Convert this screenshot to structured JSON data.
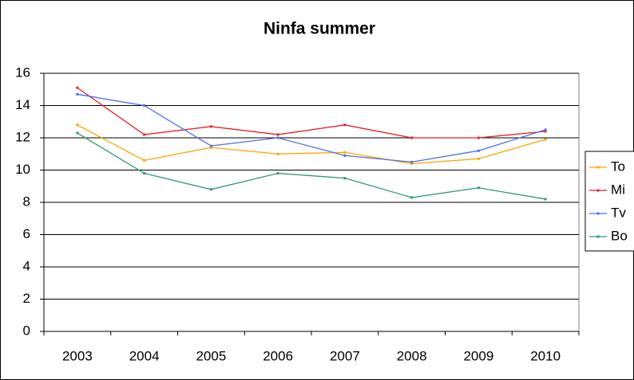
{
  "chart_data": {
    "type": "line",
    "title": "Ninfa summer",
    "categories": [
      "2003",
      "2004",
      "2005",
      "2006",
      "2007",
      "2008",
      "2009",
      "2010"
    ],
    "series": [
      {
        "name": "To",
        "color": "#ffa500",
        "values": [
          12.8,
          10.6,
          11.4,
          11.0,
          11.1,
          10.4,
          10.7,
          11.9
        ]
      },
      {
        "name": "Mi",
        "color": "#e8202a",
        "values": [
          15.1,
          12.2,
          12.7,
          12.2,
          12.8,
          12.0,
          12.0,
          12.4
        ]
      },
      {
        "name": "Tv",
        "color": "#4a6fe8",
        "values": [
          14.7,
          14.0,
          11.5,
          12.0,
          10.9,
          10.5,
          11.2,
          12.5
        ]
      },
      {
        "name": "Bo",
        "color": "#2e9a6e",
        "values": [
          12.3,
          9.8,
          8.8,
          9.8,
          9.5,
          8.3,
          8.9,
          8.2
        ]
      }
    ],
    "ylim": [
      0,
      16
    ],
    "yticks": [
      0,
      2,
      4,
      6,
      8,
      10,
      12,
      14,
      16
    ],
    "grid": true,
    "legend": "right"
  }
}
